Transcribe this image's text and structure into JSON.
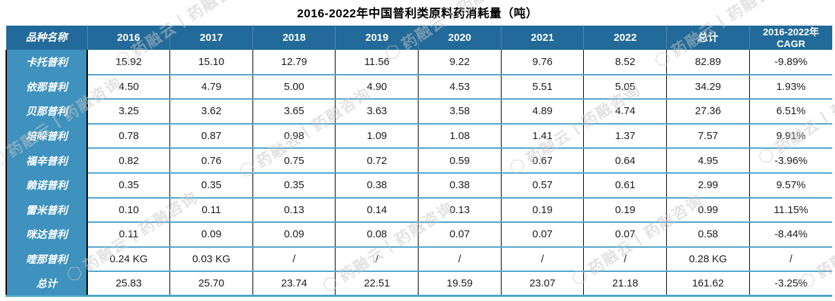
{
  "title": "2016-2022年中国普利类原料药消耗量（吨）",
  "watermark": {
    "icon": "hexagon-logo-icon",
    "text": "药融云丨药融咨询"
  },
  "colors": {
    "header_bg": "#226A99",
    "row_label_bg": "#3E92BD",
    "row_separator": "#4BA3CC",
    "column_separator": "#000000",
    "header_text": "#ffffff",
    "cell_text": "#1a1a1a"
  },
  "table": {
    "columns": [
      "品种名称",
      "2016",
      "2017",
      "2018",
      "2019",
      "2020",
      "2021",
      "2022",
      "总计",
      "2016-2022年\nCAGR"
    ],
    "rows": [
      {
        "name": "卡托普利",
        "values": [
          "15.92",
          "15.10",
          "12.79",
          "11.56",
          "9.22",
          "9.76",
          "8.52",
          "82.89",
          "-9.89%"
        ]
      },
      {
        "name": "依那普利",
        "values": [
          "4.50",
          "4.79",
          "5.00",
          "4.90",
          "4.53",
          "5.51",
          "5.05",
          "34.29",
          "1.93%"
        ]
      },
      {
        "name": "贝那普利",
        "values": [
          "3.25",
          "3.62",
          "3.65",
          "3.63",
          "3.58",
          "4.89",
          "4.74",
          "27.36",
          "6.51%"
        ]
      },
      {
        "name": "培哚普利",
        "values": [
          "0.78",
          "0.87",
          "0.98",
          "1.09",
          "1.08",
          "1.41",
          "1.37",
          "7.57",
          "9.91%"
        ]
      },
      {
        "name": "福辛普利",
        "values": [
          "0.82",
          "0.76",
          "0.75",
          "0.72",
          "0.59",
          "0.67",
          "0.64",
          "4.95",
          "-3.96%"
        ]
      },
      {
        "name": "赖诺普利",
        "values": [
          "0.35",
          "0.35",
          "0.35",
          "0.38",
          "0.38",
          "0.57",
          "0.61",
          "2.99",
          "9.57%"
        ]
      },
      {
        "name": "雷米普利",
        "values": [
          "0.10",
          "0.11",
          "0.13",
          "0.14",
          "0.13",
          "0.19",
          "0.19",
          "0.99",
          "11.15%"
        ]
      },
      {
        "name": "咪达普利",
        "values": [
          "0.11",
          "0.09",
          "0.09",
          "0.08",
          "0.07",
          "0.07",
          "0.07",
          "0.58",
          "-8.44%"
        ]
      },
      {
        "name": "喹那普利",
        "values": [
          "0.24 KG",
          "0.03 KG",
          "/",
          "/",
          "/",
          "/",
          "/",
          "0.28 KG",
          "/"
        ]
      },
      {
        "name": "总计",
        "values": [
          "25.83",
          "25.70",
          "23.74",
          "22.51",
          "19.59",
          "23.07",
          "21.18",
          "161.62",
          "-3.25%"
        ]
      }
    ]
  },
  "chart_data": {
    "type": "table",
    "title": "2016-2022年中国普利类原料药消耗量（吨）",
    "columns": [
      "品种名称",
      "2016",
      "2017",
      "2018",
      "2019",
      "2020",
      "2021",
      "2022",
      "总计",
      "2016-2022年CAGR"
    ],
    "series": [
      {
        "name": "卡托普利",
        "values": [
          15.92,
          15.1,
          12.79,
          11.56,
          9.22,
          9.76,
          8.52
        ],
        "total": 82.89,
        "cagr": "-9.89%"
      },
      {
        "name": "依那普利",
        "values": [
          4.5,
          4.79,
          5.0,
          4.9,
          4.53,
          5.51,
          5.05
        ],
        "total": 34.29,
        "cagr": "1.93%"
      },
      {
        "name": "贝那普利",
        "values": [
          3.25,
          3.62,
          3.65,
          3.63,
          3.58,
          4.89,
          4.74
        ],
        "total": 27.36,
        "cagr": "6.51%"
      },
      {
        "name": "培哚普利",
        "values": [
          0.78,
          0.87,
          0.98,
          1.09,
          1.08,
          1.41,
          1.37
        ],
        "total": 7.57,
        "cagr": "9.91%"
      },
      {
        "name": "福辛普利",
        "values": [
          0.82,
          0.76,
          0.75,
          0.72,
          0.59,
          0.67,
          0.64
        ],
        "total": 4.95,
        "cagr": "-3.96%"
      },
      {
        "name": "赖诺普利",
        "values": [
          0.35,
          0.35,
          0.35,
          0.38,
          0.38,
          0.57,
          0.61
        ],
        "total": 2.99,
        "cagr": "9.57%"
      },
      {
        "name": "雷米普利",
        "values": [
          0.1,
          0.11,
          0.13,
          0.14,
          0.13,
          0.19,
          0.19
        ],
        "total": 0.99,
        "cagr": "11.15%"
      },
      {
        "name": "咪达普利",
        "values": [
          0.11,
          0.09,
          0.09,
          0.08,
          0.07,
          0.07,
          0.07
        ],
        "total": 0.58,
        "cagr": "-8.44%"
      },
      {
        "name": "喹那普利",
        "values": [
          "0.24 KG",
          "0.03 KG",
          "/",
          "/",
          "/",
          "/",
          "/"
        ],
        "total": "0.28 KG",
        "cagr": "/"
      },
      {
        "name": "总计",
        "values": [
          25.83,
          25.7,
          23.74,
          22.51,
          19.59,
          23.07,
          21.18
        ],
        "total": 161.62,
        "cagr": "-3.25%"
      }
    ],
    "x": [
      2016,
      2017,
      2018,
      2019,
      2020,
      2021,
      2022
    ]
  }
}
